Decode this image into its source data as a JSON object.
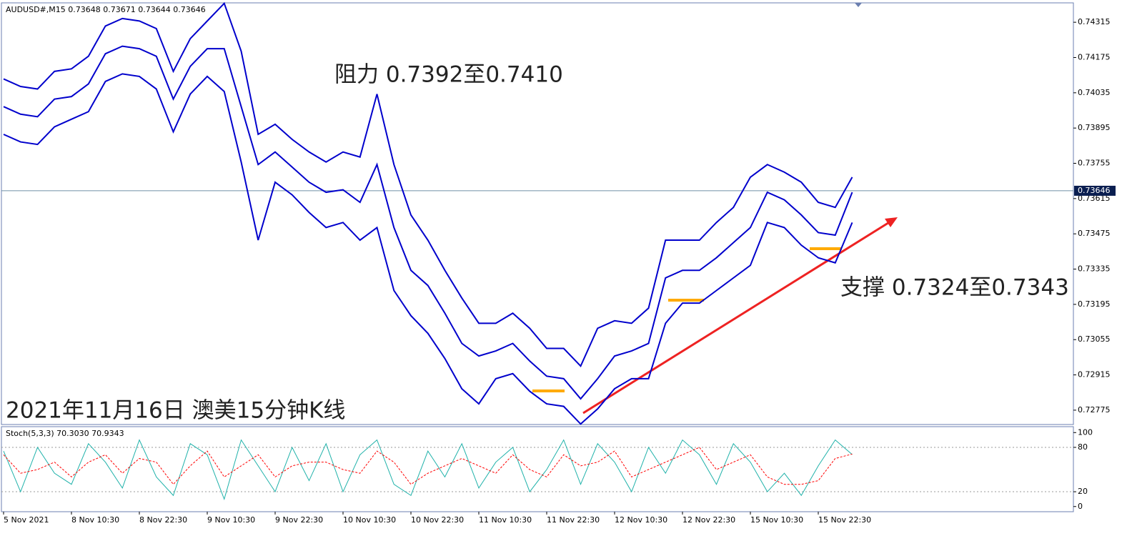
{
  "chart_data": [
    {
      "type": "line",
      "title": "AUDUSD#,M15  0.73648 0.73671 0.73644 0.73646",
      "annotations": [
        "阻力 0.7392至0.7410",
        "支撑 0.7324至0.7343",
        "2021年11月16日 澳美15分钟K线"
      ],
      "last_price": 0.73646,
      "ylim": [
        0.72718,
        0.74392
      ],
      "yticks": [
        0.74315,
        0.74175,
        0.74035,
        0.73895,
        0.73755,
        0.73615,
        0.73475,
        0.73335,
        0.73195,
        0.73055,
        0.72915,
        0.72775
      ],
      "series": [
        {
          "color": "#0000cc",
          "values": [
            0.7409,
            0.7406,
            0.7405,
            0.7412,
            0.7413,
            0.7418,
            0.743,
            0.7433,
            0.7432,
            0.7429,
            0.7412,
            0.7425,
            0.7432,
            0.7439,
            0.742,
            0.7387,
            0.7391,
            0.7385,
            0.738,
            0.7376,
            0.738,
            0.7378,
            0.7403,
            0.7375,
            0.7355,
            0.7345,
            0.7333,
            0.7322,
            0.7312,
            0.7312,
            0.7316,
            0.731,
            0.7302,
            0.7302,
            0.7295,
            0.731,
            0.7313,
            0.7312,
            0.7318,
            0.7345,
            0.7345,
            0.7345,
            0.7352,
            0.7358,
            0.737,
            0.7375,
            0.7372,
            0.7368,
            0.736,
            0.7358,
            0.737
          ]
        },
        {
          "color": "#0000cc",
          "values": [
            0.7398,
            0.7395,
            0.7394,
            0.7401,
            0.7402,
            0.7407,
            0.7419,
            0.7422,
            0.7421,
            0.7418,
            0.7401,
            0.7414,
            0.7421,
            0.7421,
            0.7398,
            0.7375,
            0.738,
            0.7374,
            0.7368,
            0.7364,
            0.7365,
            0.736,
            0.7375,
            0.735,
            0.7333,
            0.7327,
            0.7316,
            0.7304,
            0.7299,
            0.7301,
            0.7304,
            0.7297,
            0.7291,
            0.729,
            0.7282,
            0.729,
            0.7299,
            0.7301,
            0.7304,
            0.733,
            0.7333,
            0.7333,
            0.7338,
            0.7344,
            0.735,
            0.7364,
            0.7361,
            0.7355,
            0.7348,
            0.7347,
            0.7364
          ]
        },
        {
          "color": "#0000cc",
          "values": [
            0.7387,
            0.7384,
            0.7383,
            0.739,
            0.7393,
            0.7396,
            0.7408,
            0.7411,
            0.741,
            0.7405,
            0.7388,
            0.7403,
            0.741,
            0.7404,
            0.7376,
            0.7345,
            0.7368,
            0.7363,
            0.7356,
            0.735,
            0.7352,
            0.7345,
            0.735,
            0.7325,
            0.7315,
            0.7308,
            0.7298,
            0.7286,
            0.728,
            0.729,
            0.7292,
            0.7285,
            0.728,
            0.7279,
            0.7272,
            0.7278,
            0.7286,
            0.729,
            0.729,
            0.7312,
            0.732,
            0.732,
            0.7325,
            0.733,
            0.7335,
            0.7352,
            0.735,
            0.7343,
            0.7338,
            0.7336,
            0.7352
          ]
        }
      ]
    },
    {
      "type": "line",
      "title": "Stoch(5,3,3) 70.3030 70.9343",
      "categories": [
        "5 Nov 2021",
        null,
        null,
        null,
        "8 Nov 10:30",
        null,
        null,
        null,
        "8 Nov 22:30",
        null,
        null,
        null,
        "9 Nov 10:30",
        null,
        null,
        null,
        "9 Nov 22:30",
        null,
        null,
        null,
        "10 Nov 10:30",
        null,
        null,
        null,
        "10 Nov 22:30",
        null,
        null,
        null,
        "11 Nov 10:30",
        null,
        null,
        null,
        "11 Nov 22:30",
        null,
        null,
        null,
        "12 Nov 10:30",
        null,
        null,
        null,
        "12 Nov 22:30",
        null,
        null,
        null,
        "15 Nov 10:30",
        null,
        null,
        null,
        "15 Nov 22:30",
        null,
        null
      ],
      "ylim": [
        -7,
        108
      ],
      "yticks": [
        100,
        80,
        20,
        0
      ],
      "levels": [
        80,
        20
      ],
      "series": [
        {
          "color": "#20b2aa",
          "values": [
            75,
            20,
            80,
            45,
            30,
            85,
            60,
            25,
            90,
            40,
            15,
            85,
            70,
            10,
            90,
            55,
            20,
            80,
            35,
            85,
            20,
            70,
            90,
            30,
            15,
            75,
            40,
            85,
            25,
            60,
            80,
            20,
            50,
            90,
            30,
            85,
            60,
            20,
            80,
            45,
            90,
            70,
            30,
            85,
            60,
            20,
            45,
            15,
            55,
            90,
            70.303
          ]
        },
        {
          "color": "#ff0000",
          "dashed": true,
          "values": [
            70,
            45,
            50,
            60,
            40,
            60,
            70,
            45,
            65,
            60,
            30,
            55,
            75,
            40,
            55,
            70,
            40,
            55,
            60,
            60,
            50,
            45,
            75,
            60,
            30,
            45,
            55,
            65,
            55,
            45,
            70,
            50,
            40,
            70,
            55,
            60,
            75,
            40,
            50,
            60,
            70,
            80,
            50,
            60,
            70,
            40,
            30,
            30,
            35,
            65,
            70.934
          ]
        }
      ]
    }
  ]
}
